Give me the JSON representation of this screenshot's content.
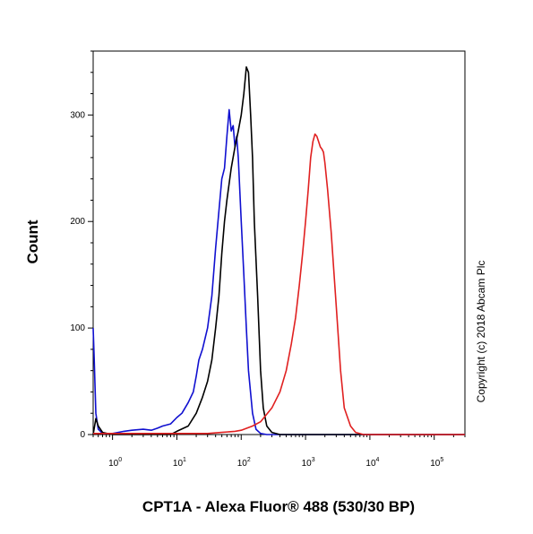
{
  "chart_data": {
    "type": "line",
    "title": "",
    "xlabel": "CPT1A - Alexa Fluor® 488 (530/30 BP)",
    "ylabel": "Count",
    "x_scale": "log",
    "xlim": [
      0.5,
      300000
    ],
    "ylim": [
      0,
      360
    ],
    "grid": false,
    "legend": "none",
    "x_ticks": [
      {
        "base": "10",
        "exp": "0",
        "value": 1
      },
      {
        "base": "10",
        "exp": "1",
        "value": 10
      },
      {
        "base": "10",
        "exp": "2",
        "value": 100
      },
      {
        "base": "10",
        "exp": "3",
        "value": 1000
      },
      {
        "base": "10",
        "exp": "4",
        "value": 10000
      },
      {
        "base": "10",
        "exp": "5",
        "value": 100000
      }
    ],
    "y_ticks": [
      0,
      100,
      200,
      300
    ],
    "annotations": [
      "Copyright (c) 2018 Abcam Plc"
    ],
    "series": [
      {
        "color": "#1010d0",
        "points": [
          [
            0.5,
            100
          ],
          [
            0.52,
            70
          ],
          [
            0.55,
            20
          ],
          [
            0.6,
            5
          ],
          [
            0.7,
            1
          ],
          [
            1,
            1
          ],
          [
            1.5,
            3
          ],
          [
            2,
            4
          ],
          [
            3,
            5
          ],
          [
            4,
            4
          ],
          [
            5,
            6
          ],
          [
            6,
            8
          ],
          [
            8,
            10
          ],
          [
            10,
            16
          ],
          [
            12,
            20
          ],
          [
            15,
            30
          ],
          [
            18,
            40
          ],
          [
            20,
            55
          ],
          [
            22,
            70
          ],
          [
            25,
            80
          ],
          [
            30,
            100
          ],
          [
            35,
            130
          ],
          [
            40,
            175
          ],
          [
            45,
            210
          ],
          [
            50,
            240
          ],
          [
            55,
            250
          ],
          [
            60,
            280
          ],
          [
            65,
            305
          ],
          [
            70,
            285
          ],
          [
            75,
            290
          ],
          [
            80,
            270
          ],
          [
            85,
            280
          ],
          [
            90,
            260
          ],
          [
            100,
            200
          ],
          [
            110,
            150
          ],
          [
            120,
            100
          ],
          [
            130,
            60
          ],
          [
            150,
            20
          ],
          [
            170,
            5
          ],
          [
            200,
            1
          ],
          [
            250,
            0
          ],
          [
            300000,
            0
          ]
        ]
      },
      {
        "color": "#000000",
        "points": [
          [
            0.5,
            0
          ],
          [
            0.55,
            15
          ],
          [
            0.6,
            8
          ],
          [
            0.7,
            2
          ],
          [
            1,
            0
          ],
          [
            8,
            0
          ],
          [
            10,
            3
          ],
          [
            15,
            8
          ],
          [
            20,
            20
          ],
          [
            25,
            35
          ],
          [
            30,
            50
          ],
          [
            35,
            70
          ],
          [
            40,
            100
          ],
          [
            45,
            130
          ],
          [
            50,
            170
          ],
          [
            55,
            200
          ],
          [
            60,
            220
          ],
          [
            70,
            250
          ],
          [
            80,
            270
          ],
          [
            90,
            285
          ],
          [
            100,
            300
          ],
          [
            110,
            320
          ],
          [
            120,
            345
          ],
          [
            130,
            340
          ],
          [
            140,
            300
          ],
          [
            150,
            260
          ],
          [
            160,
            200
          ],
          [
            180,
            130
          ],
          [
            200,
            60
          ],
          [
            220,
            25
          ],
          [
            250,
            8
          ],
          [
            300,
            2
          ],
          [
            400,
            0
          ],
          [
            300000,
            0
          ]
        ]
      },
      {
        "color": "#e02020",
        "points": [
          [
            0.5,
            1
          ],
          [
            10,
            1
          ],
          [
            30,
            1
          ],
          [
            50,
            2
          ],
          [
            80,
            3
          ],
          [
            100,
            4
          ],
          [
            150,
            8
          ],
          [
            200,
            12
          ],
          [
            300,
            25
          ],
          [
            400,
            40
          ],
          [
            500,
            60
          ],
          [
            600,
            85
          ],
          [
            700,
            110
          ],
          [
            800,
            140
          ],
          [
            900,
            170
          ],
          [
            1000,
            200
          ],
          [
            1100,
            230
          ],
          [
            1200,
            260
          ],
          [
            1300,
            275
          ],
          [
            1400,
            282
          ],
          [
            1500,
            280
          ],
          [
            1600,
            275
          ],
          [
            1700,
            270
          ],
          [
            1800,
            268
          ],
          [
            1900,
            265
          ],
          [
            2000,
            255
          ],
          [
            2200,
            230
          ],
          [
            2500,
            190
          ],
          [
            3000,
            120
          ],
          [
            3500,
            60
          ],
          [
            4000,
            25
          ],
          [
            5000,
            8
          ],
          [
            6000,
            2
          ],
          [
            8000,
            0
          ],
          [
            300000,
            0
          ]
        ]
      }
    ]
  }
}
